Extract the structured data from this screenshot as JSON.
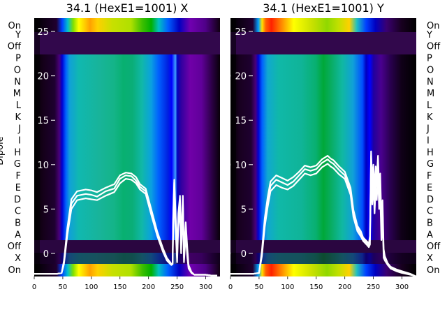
{
  "chart_data": {
    "type": "heatmap",
    "ylabel": "Dipole",
    "dipole_labels": [
      "On",
      "X",
      "Off",
      "A",
      "B",
      "C",
      "D",
      "E",
      "F",
      "G",
      "H",
      "I",
      "J",
      "K",
      "L",
      "M",
      "N",
      "O",
      "P",
      "Off",
      "Y",
      "On"
    ],
    "xticks": [
      0,
      50,
      100,
      150,
      200,
      250,
      300
    ],
    "xlim": [
      0,
      325
    ],
    "inner_yticks": [
      0,
      5,
      10,
      15,
      20,
      25
    ],
    "inner_ylim": [
      -2.6,
      26.5
    ],
    "colormap": [
      "#000000",
      "#3a0050",
      "#6a0090",
      "#0000ff",
      "#00a8ff",
      "#00c0a0",
      "#00b000",
      "#c8d800",
      "#ffff00",
      "#ff9000",
      "#ff0000"
    ],
    "panels": [
      {
        "title": "34.1 (HexE1=1001) X",
        "traces": {
          "x": [
            0,
            40,
            48,
            52,
            58,
            65,
            75,
            90,
            100,
            110,
            125,
            140,
            150,
            160,
            170,
            178,
            185,
            195,
            205,
            215,
            225,
            232,
            238,
            240,
            242,
            243,
            245,
            247,
            250,
            252,
            255,
            257,
            260,
            262,
            265,
            268,
            270,
            275,
            280,
            290,
            300,
            310,
            320
          ],
          "series": [
            {
              "offset": 0.0,
              "y": [
                -2.3,
                -2.3,
                -2.2,
                -1.0,
                2.5,
                5.6,
                6.5,
                6.7,
                6.6,
                6.4,
                7.0,
                7.3,
                8.4,
                8.8,
                8.7,
                8.2,
                7.5,
                7.0,
                4.6,
                2.3,
                0.4,
                -0.6,
                -1.1,
                -1.3,
                -1.2,
                3.5,
                8.0,
                4.5,
                -0.5,
                4.0,
                6.0,
                1.0,
                6.5,
                -0.5,
                3.0,
                0.0,
                -1.5,
                -2.2,
                -2.4,
                -2.4,
                -2.4,
                -2.5,
                -2.5
              ]
            },
            {
              "offset": -0.6,
              "y": [
                -2.3,
                -2.3,
                -2.2,
                -1.2,
                2.1,
                5.0,
                6.0,
                6.2,
                6.1,
                6.0,
                6.5,
                6.9,
                7.9,
                8.4,
                8.3,
                7.9,
                7.2,
                6.7,
                4.3,
                2.0,
                0.2,
                -0.8,
                -1.2,
                -1.3,
                -1.2,
                2.0,
                7.0,
                3.0,
                -1.0,
                3.0,
                5.0,
                0.0,
                5.0,
                -1.0,
                2.0,
                -0.5,
                -1.7,
                -2.2,
                -2.4,
                -2.4,
                -2.4,
                -2.5,
                -2.5
              ]
            },
            {
              "offset": 0.5,
              "y": [
                -2.3,
                -2.3,
                -2.2,
                -0.8,
                2.9,
                6.1,
                7.0,
                7.2,
                7.1,
                6.9,
                7.4,
                7.8,
                8.8,
                9.1,
                9.0,
                8.6,
                7.8,
                7.3,
                4.9,
                2.5,
                0.6,
                -0.5,
                -1.0,
                -1.2,
                -1.1,
                4.0,
                8.3,
                5.0,
                0.0,
                4.5,
                6.5,
                1.5,
                6.0,
                0.0,
                3.5,
                0.5,
                -1.3,
                -2.1,
                -2.4,
                -2.4,
                -2.4,
                -2.5,
                -2.5
              ]
            }
          ]
        }
      },
      {
        "title": "34.1 (HexE1=1001) Y",
        "traces": {
          "x": [
            0,
            40,
            50,
            55,
            60,
            65,
            70,
            80,
            90,
            100,
            110,
            120,
            130,
            140,
            150,
            160,
            170,
            175,
            180,
            190,
            200,
            210,
            215,
            222,
            228,
            232,
            238,
            242,
            244,
            246,
            248,
            250,
            252,
            254,
            256,
            258,
            260,
            262,
            264,
            266,
            268,
            270,
            275,
            280,
            290,
            300,
            315,
            325
          ],
          "series": [
            {
              "offset": 0.0,
              "y": [
                -2.3,
                -2.3,
                -2.2,
                0.0,
                3.5,
                5.8,
                7.6,
                8.3,
                8.0,
                7.7,
                8.1,
                8.8,
                9.5,
                9.3,
                9.5,
                10.2,
                10.6,
                10.3,
                10.1,
                9.4,
                8.8,
                7.0,
                4.5,
                2.8,
                2.2,
                1.6,
                1.2,
                0.9,
                1.5,
                11.0,
                7.0,
                9.5,
                6.0,
                9.0,
                7.5,
                10.5,
                6.5,
                8.0,
                2.5,
                5.0,
                0.0,
                -0.5,
                -1.2,
                -1.6,
                -1.9,
                -2.1,
                -2.4,
                -2.6
              ]
            },
            {
              "offset": -0.7,
              "y": [
                -2.3,
                -2.3,
                -2.2,
                -0.3,
                3.0,
                5.2,
                7.0,
                7.7,
                7.4,
                7.2,
                7.6,
                8.3,
                9.0,
                8.8,
                9.0,
                9.7,
                10.1,
                9.8,
                9.6,
                8.9,
                8.4,
                6.6,
                4.1,
                2.5,
                1.9,
                1.4,
                1.0,
                0.7,
                1.0,
                9.0,
                5.5,
                8.0,
                4.5,
                7.5,
                6.0,
                9.0,
                5.0,
                6.5,
                1.5,
                4.0,
                -0.5,
                -0.8,
                -1.3,
                -1.7,
                -2.0,
                -2.2,
                -2.4,
                -2.6
              ]
            },
            {
              "offset": 0.6,
              "y": [
                -2.3,
                -2.3,
                -2.2,
                0.3,
                4.0,
                6.3,
                8.1,
                8.8,
                8.5,
                8.2,
                8.6,
                9.2,
                9.9,
                9.7,
                9.9,
                10.6,
                11.0,
                10.7,
                10.5,
                9.8,
                9.2,
                7.4,
                4.9,
                3.1,
                2.5,
                1.8,
                1.4,
                1.1,
                2.0,
                11.5,
                8.0,
                10.0,
                7.0,
                9.8,
                8.5,
                11.0,
                7.5,
                9.0,
                3.5,
                6.0,
                0.5,
                -0.3,
                -1.1,
                -1.5,
                -1.8,
                -2.0,
                -2.3,
                -2.6
              ]
            }
          ]
        }
      }
    ]
  }
}
